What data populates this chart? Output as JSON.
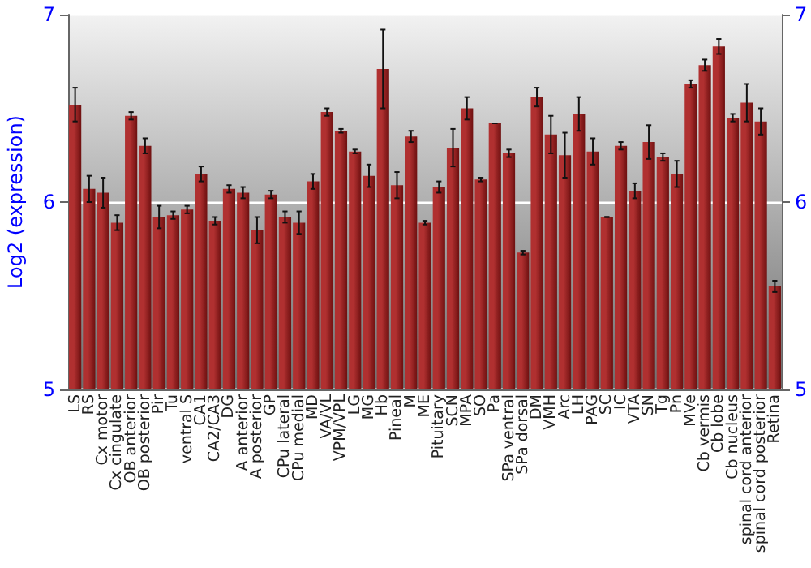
{
  "chart_data": {
    "type": "bar",
    "ylabel": "Log2 (expression)",
    "categories": [
      "LS",
      "RS",
      "Cx motor",
      "Cx cingulate",
      "OB anterior",
      "OB posterior",
      "Pir",
      "Tu",
      "ventral S",
      "CA1",
      "CA2/CA3",
      "DG",
      "A anterior",
      "A posterior",
      "GP",
      "CPu lateral",
      "CPu medial",
      "MD",
      "VA/VL",
      "VPM/VPL",
      "LG",
      "MG",
      "Hb",
      "Pineal",
      "M",
      "ME",
      "Pituitary",
      "SCN",
      "MPA",
      "SO",
      "Pa",
      "SPa ventral",
      "SPa dorsal",
      "DM",
      "VMH",
      "Arc",
      "LH",
      "PAG",
      "SC",
      "IC",
      "VTA",
      "SN",
      "Tg",
      "Pn",
      "MVe",
      "Cb vermis",
      "Cb lobe",
      "Cb nucleus",
      "spinal cord anterior",
      "spinal cord posterior",
      "Retina"
    ],
    "values": [
      6.52,
      6.07,
      6.05,
      5.89,
      6.46,
      6.3,
      5.92,
      5.93,
      5.96,
      6.15,
      5.9,
      6.07,
      6.05,
      5.85,
      6.04,
      5.92,
      5.89,
      6.11,
      6.48,
      6.38,
      6.27,
      6.14,
      6.71,
      6.09,
      6.35,
      5.89,
      6.08,
      6.29,
      6.5,
      6.12,
      6.42,
      6.26,
      5.73,
      6.56,
      6.36,
      6.25,
      6.47,
      6.27,
      5.92,
      6.3,
      6.06,
      6.32,
      6.24,
      6.15,
      6.63,
      6.73,
      6.83,
      6.45,
      6.53,
      6.43,
      5.55
    ],
    "errors": [
      0.09,
      0.07,
      0.08,
      0.04,
      0.02,
      0.04,
      0.06,
      0.02,
      0.02,
      0.04,
      0.02,
      0.02,
      0.03,
      0.07,
      0.02,
      0.03,
      0.06,
      0.04,
      0.02,
      0.01,
      0.01,
      0.06,
      0.21,
      0.07,
      0.03,
      0.01,
      0.03,
      0.1,
      0.06,
      0.01,
      0,
      0.02,
      0.01,
      0.05,
      0.1,
      0.12,
      0.09,
      0.07,
      0,
      0.02,
      0.04,
      0.09,
      0.02,
      0.07,
      0.02,
      0.03,
      0.04,
      0.02,
      0.1,
      0.07,
      0.03
    ],
    "color": "#b03030",
    "ylim": [
      5,
      7
    ],
    "yticks": [
      5,
      6,
      7
    ],
    "y2lim": [
      5,
      7
    ],
    "y2ticks": [
      5,
      6,
      7
    ],
    "grid": "y"
  }
}
